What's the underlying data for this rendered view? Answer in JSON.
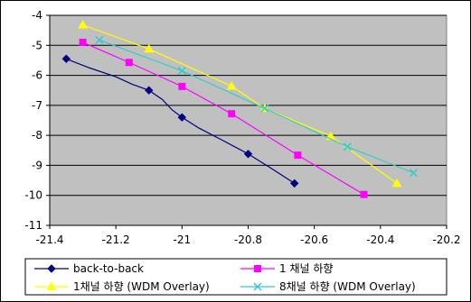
{
  "chart_data": {
    "type": "line",
    "title": "",
    "xlabel": "",
    "ylabel": "",
    "xlim": [
      -21.4,
      -20.2
    ],
    "ylim": [
      -11,
      -4
    ],
    "x_ticks": [
      "-21.4",
      "-21.2",
      "-21",
      "-20.8",
      "-20.6",
      "-20.4",
      "-20.2"
    ],
    "y_ticks": [
      "-4",
      "-5",
      "-6",
      "-7",
      "-8",
      "-9",
      "-10",
      "-11"
    ],
    "grid": "horizontal",
    "plot_background": "#c0c0c0",
    "legend_position": "bottom",
    "series": [
      {
        "name": "back-to-back",
        "color": "#000080",
        "marker": "diamond",
        "points": [
          [
            -21.35,
            -5.45
          ],
          [
            -21.1,
            -6.5
          ],
          [
            -21.0,
            -7.4
          ],
          [
            -20.8,
            -8.62
          ],
          [
            -20.66,
            -9.6
          ]
        ],
        "curve": [
          [
            -21.35,
            -5.45
          ],
          [
            -21.28,
            -5.75
          ],
          [
            -21.2,
            -6.05
          ],
          [
            -21.15,
            -6.3
          ],
          [
            -21.1,
            -6.5
          ],
          [
            -21.06,
            -6.8
          ],
          [
            -21.03,
            -7.15
          ],
          [
            -21.0,
            -7.4
          ],
          [
            -20.95,
            -7.75
          ],
          [
            -20.88,
            -8.15
          ],
          [
            -20.8,
            -8.62
          ],
          [
            -20.73,
            -9.1
          ],
          [
            -20.66,
            -9.6
          ]
        ]
      },
      {
        "name": "1 채널 하향",
        "color": "#ff00ff",
        "marker": "square",
        "points": [
          [
            -21.3,
            -4.9
          ],
          [
            -21.16,
            -5.57
          ],
          [
            -21.0,
            -6.37
          ],
          [
            -20.85,
            -7.28
          ],
          [
            -20.65,
            -8.66
          ],
          [
            -20.45,
            -9.97
          ]
        ]
      },
      {
        "name": "1채널 하향 (WDM Overlay)",
        "color": "#ffff00",
        "marker": "triangle",
        "points": [
          [
            -21.3,
            -4.32
          ],
          [
            -21.1,
            -5.12
          ],
          [
            -20.85,
            -6.36
          ],
          [
            -20.75,
            -7.1
          ],
          [
            -20.55,
            -8.03
          ],
          [
            -20.35,
            -9.6
          ]
        ]
      },
      {
        "name": "8채널 하향 (WDM Overlay)",
        "color": "#33cccc",
        "marker": "x",
        "points": [
          [
            -21.25,
            -4.82
          ],
          [
            -21.0,
            -5.85
          ],
          [
            -20.75,
            -7.1
          ],
          [
            -20.5,
            -8.38
          ],
          [
            -20.3,
            -9.25
          ]
        ]
      }
    ]
  }
}
